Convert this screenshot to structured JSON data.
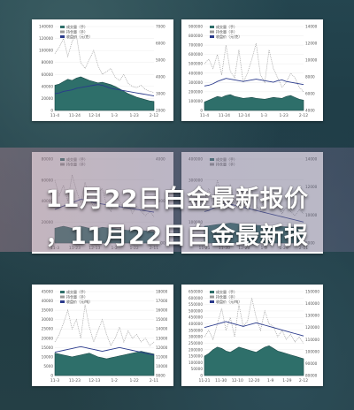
{
  "headline": {
    "line1": "11月22日白金最新报价",
    "line2": "，11月22日白金最新报"
  },
  "colors": {
    "page_bg": "#1f3f4a",
    "area_fill": "#2e6f6a",
    "area_dark": "#1d4d4a",
    "line_navy": "#2a3a8c",
    "dotted": "#9a9a9a"
  },
  "chart_data": [
    {
      "type": "area",
      "panel": "top-left",
      "x_ticks": [
        "11-4",
        "11-24",
        "12-14",
        "1-3",
        "1-23",
        "2-12"
      ],
      "y_left_ticks": [
        "140000",
        "120000",
        "100000",
        "80000",
        "60000",
        "40000",
        "20000",
        "0"
      ],
      "y_right_ticks": [
        "7000",
        "6000",
        "5000",
        "4000",
        "3000",
        "2000"
      ],
      "ylim_left": [
        0,
        140000
      ],
      "ylim_right": [
        1500,
        7000
      ],
      "legend": [
        "成交量（手）",
        "持仓量（手）",
        "收盘价（元/克）"
      ],
      "series": [
        {
          "name": "成交量（手）",
          "values": [
            42000,
            44000,
            48000,
            52000,
            50000,
            54000,
            56000,
            53000,
            50000,
            48000,
            46000,
            47000,
            45000,
            43000,
            40000,
            36000,
            32000,
            28000,
            25000,
            22000,
            20000,
            18000,
            16000,
            15000
          ]
        },
        {
          "name": "持仓量（手）",
          "values": [
            95000,
            105000,
            120000,
            90000,
            115000,
            125000,
            80000,
            70000,
            85000,
            100000,
            75000,
            60000,
            65000,
            70000,
            55000,
            50000,
            60000,
            45000,
            40000,
            38000,
            42000,
            35000,
            32000,
            30000
          ]
        },
        {
          "name": "收盘价（元/克）",
          "values": [
            2600,
            2650,
            2750,
            2800,
            2850,
            2950,
            3000,
            3050,
            3100,
            3150,
            3200,
            3150,
            3050,
            2950,
            2900,
            2850,
            2800,
            2750,
            2700,
            2650,
            2600,
            2550,
            2500,
            2450
          ]
        }
      ]
    },
    {
      "type": "area",
      "panel": "top-right",
      "x_ticks": [
        "11-4",
        "11-24",
        "12-14",
        "1-3",
        "1-23",
        "2-12"
      ],
      "y_left_ticks": [
        "900000",
        "800000",
        "700000",
        "600000",
        "500000",
        "400000",
        "300000",
        "200000",
        "100000",
        "0"
      ],
      "y_right_ticks": [
        "14000",
        "12000",
        "10000",
        "8000",
        "6000",
        "4000"
      ],
      "ylim_left": [
        0,
        900000
      ],
      "ylim_right": [
        3000,
        14000
      ],
      "legend": [
        "成交量（手）",
        "持仓量（手）",
        "收盘价（元/克）"
      ],
      "series": [
        {
          "name": "成交量（手）",
          "values": [
            90000,
            110000,
            130000,
            150000,
            140000,
            160000,
            170000,
            150000,
            140000,
            130000,
            135000,
            140000,
            130000,
            125000,
            120000,
            130000,
            140000,
            135000,
            130000,
            150000,
            160000,
            140000,
            120000,
            110000
          ]
        },
        {
          "name": "持仓量（手）",
          "values": [
            500000,
            550000,
            450000,
            600000,
            380000,
            700000,
            420000,
            350000,
            650000,
            300000,
            400000,
            550000,
            720000,
            380000,
            300000,
            650000,
            450000,
            350000,
            250000,
            300000,
            400000,
            350000,
            250000,
            200000
          ]
        },
        {
          "name": "收盘价（元/克）",
          "values": [
            6200,
            6300,
            6500,
            6800,
            7000,
            7200,
            7100,
            7000,
            6900,
            6800,
            6900,
            7000,
            7100,
            7000,
            6900,
            6800,
            6700,
            6900,
            7000,
            6800,
            6700,
            6600,
            6500,
            6400
          ]
        }
      ]
    },
    {
      "type": "area",
      "panel": "middle-left",
      "x_ticks": [
        "11-3",
        "11-23",
        "12-13",
        "1-2",
        "1-22",
        "2-11"
      ],
      "y_left_ticks": [
        "80000",
        "60000",
        "40000",
        "20000",
        "0"
      ],
      "y_right_ticks": [
        "4000",
        "3000",
        "2000"
      ],
      "ylim_left": [
        0,
        80000
      ],
      "ylim_right": [
        1500,
        4000
      ],
      "legend": [
        "成交量（手）",
        "持仓量（手）"
      ],
      "series": [
        {
          "name": "成交量（手）",
          "values": [
            14000,
            15000,
            16000,
            15000,
            14000,
            15500,
            16000,
            15000,
            14000,
            13000,
            14000,
            15000,
            14500,
            14000,
            13500,
            13000,
            12500,
            12000,
            12500,
            13000,
            12000,
            11500,
            11000,
            10500
          ]
        },
        {
          "name": "持仓量（手）",
          "values": [
            60000,
            45000,
            55000,
            40000,
            65000,
            50000,
            38000,
            58000,
            42000,
            35000,
            48000,
            52000,
            36000,
            30000,
            45000,
            40000,
            32000,
            38000,
            28000,
            35000,
            30000,
            26000,
            30000,
            25000
          ]
        },
        {
          "name": "收盘价（元/克）",
          "values": [
            2500,
            2550,
            2600,
            2650,
            2700,
            2750,
            2800,
            2780,
            2750,
            2700,
            2680,
            2660,
            2640,
            2620,
            2600,
            2580,
            2560,
            2540,
            2520,
            2500,
            2480,
            2460,
            2440,
            2420
          ]
        }
      ]
    },
    {
      "type": "area",
      "panel": "middle-right",
      "x_ticks": [
        "11-21",
        "11-30",
        "12-20",
        "1-9",
        "1-29",
        "2-11"
      ],
      "y_left_ticks": [
        "400000",
        "300000",
        "200000",
        "100000",
        "0"
      ],
      "y_right_ticks": [
        "14000",
        "12000",
        "10000",
        "8000"
      ],
      "ylim_left": [
        0,
        400000
      ],
      "ylim_right": [
        6000,
        14000
      ],
      "legend": [
        "成交量（手）",
        "持仓量（手）"
      ],
      "series": [
        {
          "name": "成交量（手）",
          "values": [
            80000,
            82000,
            85000,
            88000,
            90000,
            92000,
            95000,
            93000,
            90000,
            88000,
            86000,
            85000,
            84000,
            83000,
            82000,
            81000,
            80000,
            79000,
            78000,
            77000,
            76000,
            75000,
            74000,
            73000
          ]
        },
        {
          "name": "持仓量（手）",
          "values": [
            200000,
            260000,
            180000,
            300000,
            220000,
            160000,
            280000,
            190000,
            240000,
            170000,
            210000,
            250000,
            180000,
            150000,
            230000,
            200000,
            160000,
            190000,
            140000,
            170000,
            150000,
            130000,
            160000,
            140000
          ]
        },
        {
          "name": "收盘价（元/克）",
          "values": [
            9000,
            9100,
            9300,
            9500,
            9600,
            9800,
            9700,
            9600,
            9500,
            9400,
            9300,
            9200,
            9100,
            9000,
            8900,
            8800,
            8700,
            8600,
            8500,
            8400,
            8300,
            8200,
            8100,
            8000
          ]
        }
      ]
    },
    {
      "type": "area",
      "panel": "bottom-left",
      "x_ticks": [
        "11-3",
        "11-23",
        "12-13",
        "1-2",
        "1-22",
        "2-11"
      ],
      "y_left_ticks": [
        "45000",
        "40000",
        "35000",
        "30000",
        "25000",
        "20000",
        "15000",
        "10000",
        "5000",
        "0"
      ],
      "y_right_ticks": [
        "18000",
        "17000",
        "16000",
        "15000",
        "14000",
        "13000",
        "12000",
        "11000",
        "10000",
        "9000"
      ],
      "ylim_left": [
        0,
        45000
      ],
      "ylim_right": [
        9000,
        18000
      ],
      "legend": [
        "成交量（手）",
        "持仓量（手）",
        "收盘价（元/吨）"
      ],
      "series": [
        {
          "name": "成交量（手）",
          "values": [
            12000,
            11500,
            11000,
            10500,
            10000,
            10500,
            11000,
            11500,
            12000,
            11000,
            10000,
            9500,
            9000,
            9500,
            10000,
            10500,
            11000,
            11500,
            12000,
            12500,
            13000,
            12500,
            12000,
            11500
          ]
        },
        {
          "name": "持仓量（手）",
          "values": [
            18000,
            22000,
            28000,
            35000,
            25000,
            30000,
            20000,
            38000,
            26000,
            18000,
            24000,
            30000,
            22000,
            16000,
            20000,
            26000,
            18000,
            24000,
            20000,
            22000,
            18000,
            20000,
            16000,
            18000
          ]
        },
        {
          "name": "收盘价（元/吨）",
          "values": [
            11500,
            11600,
            11700,
            11800,
            11900,
            12000,
            12100,
            12000,
            11900,
            11800,
            11700,
            11600,
            11700,
            11800,
            11900,
            12000,
            11900,
            11800,
            11700,
            11600,
            11500,
            11400,
            11300,
            11200
          ]
        }
      ]
    },
    {
      "type": "area",
      "panel": "bottom-right",
      "x_ticks": [
        "11-21",
        "11-30",
        "12-10",
        "12-20",
        "1-9",
        "1-29",
        "2-12"
      ],
      "y_left_ticks": [
        "650000",
        "600000",
        "550000",
        "500000",
        "450000",
        "400000",
        "350000",
        "300000",
        "250000",
        "200000",
        "150000",
        "100000",
        "50000",
        "0"
      ],
      "y_right_ticks": [
        "150000",
        "140000",
        "130000",
        "120000",
        "110000",
        "100000",
        "90000",
        "80000"
      ],
      "ylim_left": [
        0,
        650000
      ],
      "ylim_right": [
        80000,
        150000
      ],
      "legend": [
        "成交量（手）",
        "持仓量（手）",
        "收盘价（元/吨）"
      ],
      "series": [
        {
          "name": "成交量（手）",
          "values": [
            150000,
            170000,
            200000,
            220000,
            210000,
            190000,
            180000,
            200000,
            220000,
            210000,
            200000,
            190000,
            180000,
            200000,
            220000,
            230000,
            210000,
            190000,
            180000,
            170000,
            160000,
            150000,
            140000,
            130000
          ]
        },
        {
          "name": "持仓量（手）",
          "values": [
            300000,
            350000,
            280000,
            400000,
            520000,
            350000,
            450000,
            300000,
            550000,
            380000,
            420000,
            600000,
            450000,
            350000,
            500000,
            400000,
            380000,
            300000,
            350000,
            280000,
            320000,
            260000,
            300000,
            250000
          ]
        },
        {
          "name": "收盘价（元/吨）",
          "values": [
            120000,
            121000,
            122000,
            123000,
            124000,
            125000,
            124000,
            123000,
            122000,
            121000,
            122000,
            123000,
            124000,
            123000,
            122000,
            121000,
            120000,
            119000,
            118000,
            117000,
            116000,
            115000,
            114000,
            113000
          ]
        }
      ]
    }
  ]
}
